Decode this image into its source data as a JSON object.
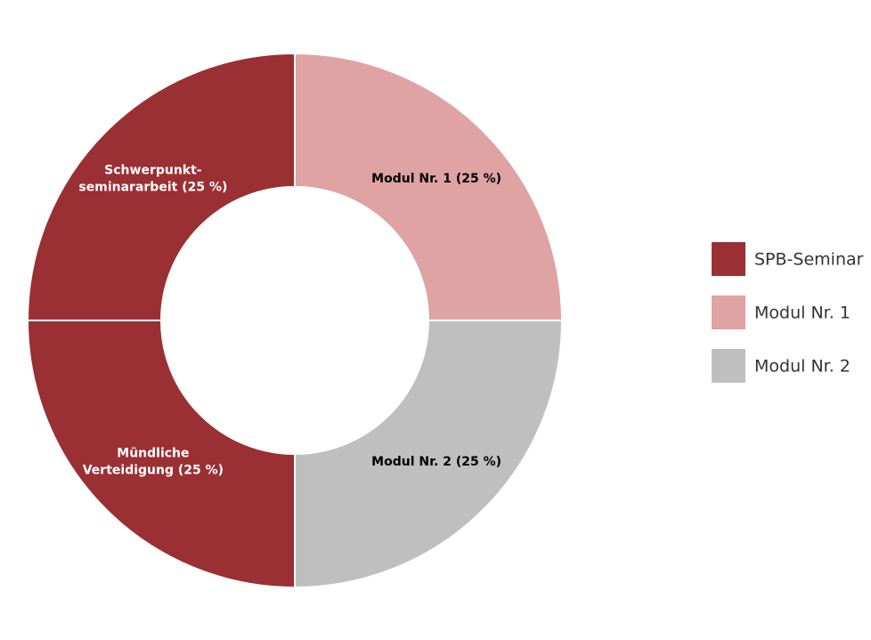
{
  "chart_data": {
    "type": "donut",
    "values": [
      25,
      25,
      25,
      25
    ],
    "value_labels": [
      [
        "Modul Nr. 1 (25 %)"
      ],
      [
        "Modul Nr. 2 (25 %)"
      ],
      [
        "Mündliche",
        "Verteidigung (25 %)"
      ],
      [
        "Schwerpunkt-",
        "seminararbeit (25 %)"
      ]
    ],
    "colors": [
      "#dfa3a3",
      "#bfbfbf",
      "#9a3033",
      "#9a3033"
    ],
    "label_colors": [
      "#000000",
      "#000000",
      "#ffffff",
      "#ffffff"
    ],
    "legend": [
      {
        "name": "SPB-Seminar",
        "color": "#9a3033"
      },
      {
        "name": "Modul Nr. 1",
        "color": "#dfa3a3"
      },
      {
        "name": "Modul Nr. 2",
        "color": "#bfbfbf"
      }
    ],
    "legend_position": "right"
  }
}
